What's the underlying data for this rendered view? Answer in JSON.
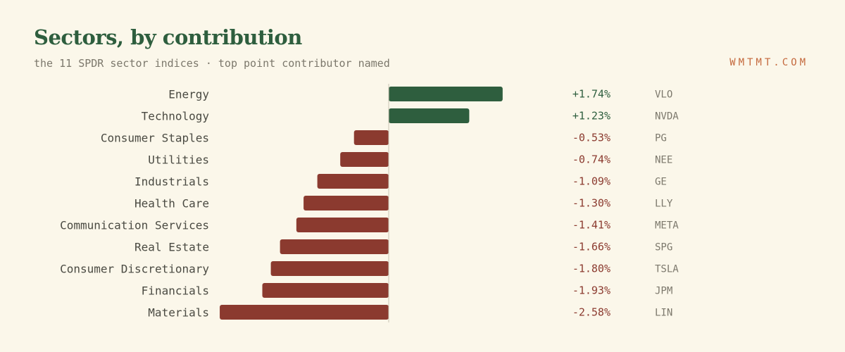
{
  "header": {
    "title": "Sectors, by contribution",
    "subtitle": "the 11 SPDR sector indices · top point contributor named",
    "brand": "WMTMT.COM"
  },
  "colors": {
    "positive": "#2e5e3e",
    "negative": "#8b3a2f",
    "axis": "#c9c4b4",
    "label": "#4a4a42",
    "ticker": "#7c786c"
  },
  "chart_data": {
    "type": "bar",
    "orientation": "horizontal",
    "categories": [
      "Energy",
      "Technology",
      "Consumer Staples",
      "Utilities",
      "Industrials",
      "Health Care",
      "Communication Services",
      "Real Estate",
      "Consumer Discretionary",
      "Financials",
      "Materials"
    ],
    "values": [
      1.74,
      1.23,
      -0.53,
      -0.74,
      -1.09,
      -1.3,
      -1.41,
      -1.66,
      -1.8,
      -1.93,
      -2.58
    ],
    "value_labels": [
      "+1.74%",
      "+1.23%",
      "-0.53%",
      "-0.74%",
      "-1.09%",
      "-1.30%",
      "-1.41%",
      "-1.66%",
      "-1.80%",
      "-1.93%",
      "-2.58%"
    ],
    "top_contributors": [
      "VLO",
      "NVDA",
      "PG",
      "NEE",
      "GE",
      "LLY",
      "META",
      "SPG",
      "TSLA",
      "JPM",
      "LIN"
    ],
    "xlim": [
      -2.58,
      1.74
    ],
    "grid": false,
    "legend": "none"
  }
}
